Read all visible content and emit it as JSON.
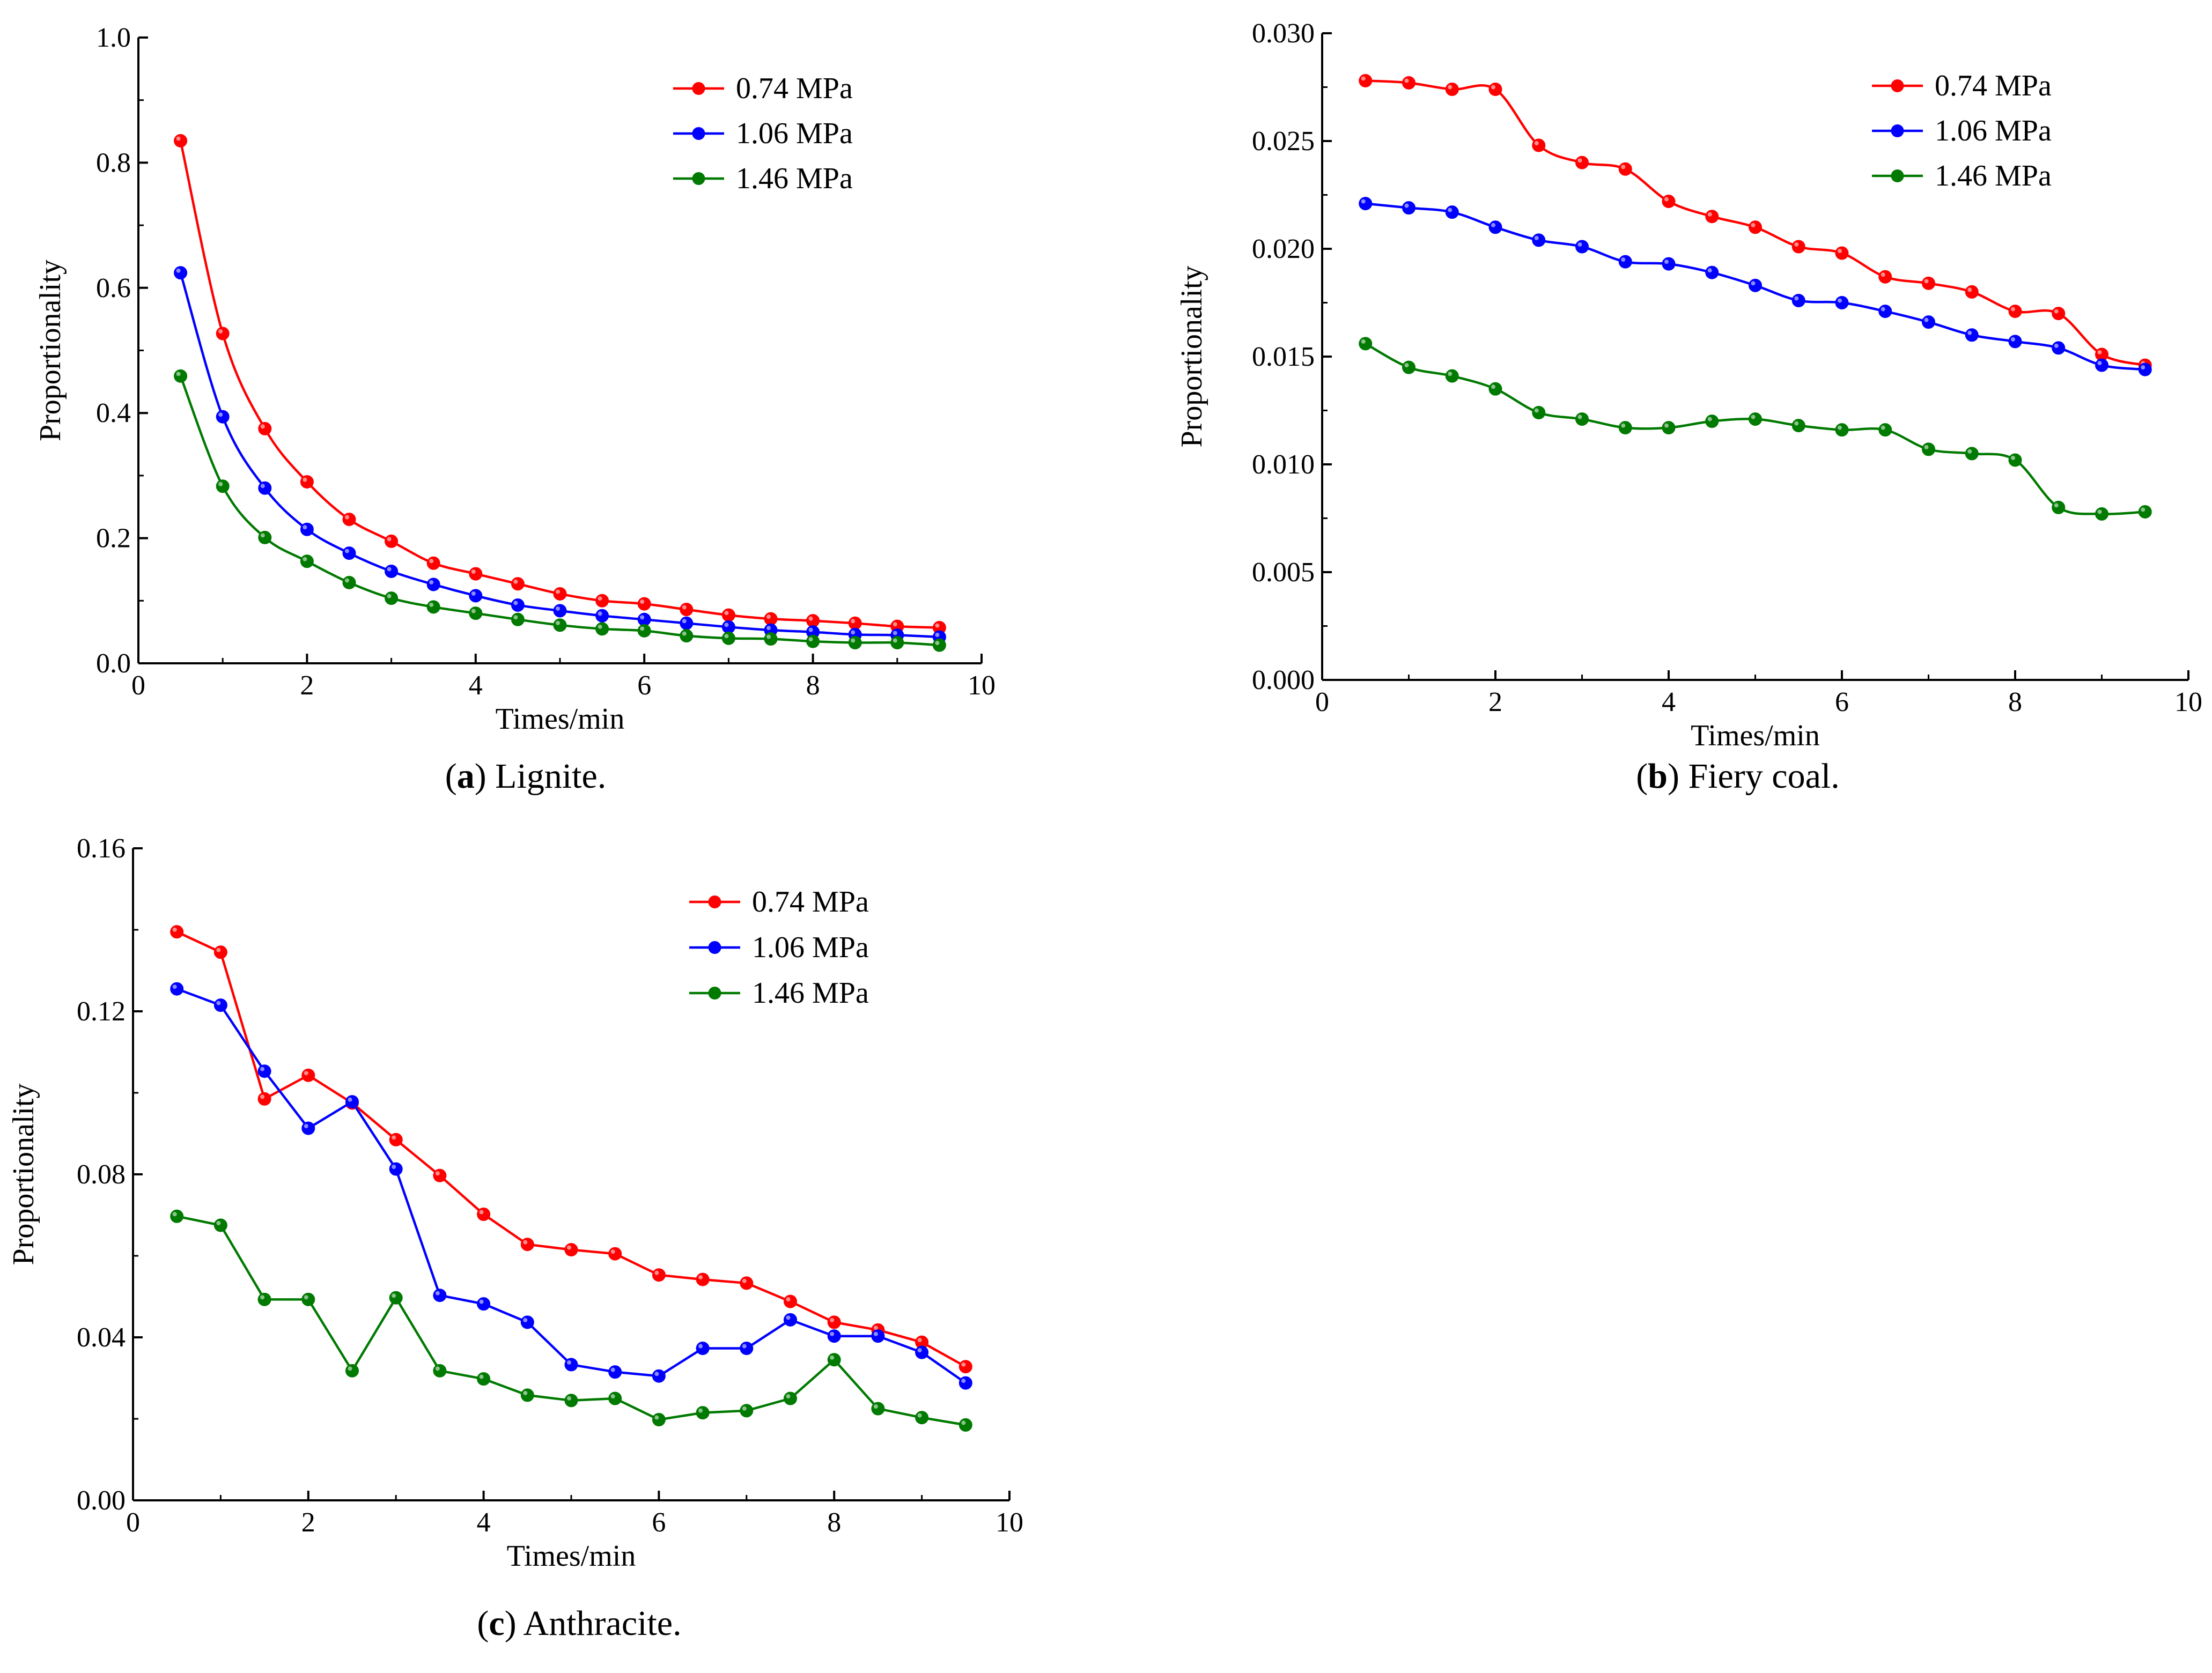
{
  "colors": {
    "red": "#ff0000",
    "blue": "#0000ff",
    "green": "#007a00"
  },
  "panels": [
    {
      "id": "a",
      "caption_label": "a",
      "caption_text": ") Lignite.",
      "caption_open": "(",
      "chart_data": {
        "type": "line",
        "title": "",
        "xlabel": "Times/min",
        "ylabel": "Proportionality",
        "xlim": [
          0,
          10
        ],
        "ylim": [
          0,
          1.0
        ],
        "xticks": [
          0,
          2,
          4,
          6,
          8,
          10
        ],
        "xtick_labels": [
          "0",
          "2",
          "4",
          "6",
          "8",
          "10"
        ],
        "yticks": [
          0,
          0.2,
          0.4,
          0.6,
          0.8,
          1.0
        ],
        "ytick_labels": [
          "0.0",
          "0.2",
          "0.4",
          "0.6",
          "0.8",
          "1.0"
        ],
        "legend_position": "top-right",
        "smooth": true,
        "x": [
          0.5,
          1.0,
          1.5,
          2.0,
          2.5,
          3.0,
          3.5,
          4.0,
          4.5,
          5.0,
          5.5,
          6.0,
          6.5,
          7.0,
          7.5,
          8.0,
          8.5,
          9.0,
          9.5
        ],
        "series": [
          {
            "name": "0.74 MPa",
            "color": "#ff0000",
            "values": [
              0.835,
              0.527,
              0.375,
              0.29,
              0.23,
              0.195,
              0.16,
              0.143,
              0.127,
              0.111,
              0.1,
              0.095,
              0.086,
              0.077,
              0.071,
              0.068,
              0.064,
              0.059,
              0.057
            ]
          },
          {
            "name": "1.06 MPa",
            "color": "#0000ff",
            "values": [
              0.624,
              0.394,
              0.28,
              0.214,
              0.176,
              0.147,
              0.126,
              0.108,
              0.093,
              0.084,
              0.076,
              0.07,
              0.064,
              0.058,
              0.053,
              0.05,
              0.046,
              0.045,
              0.042
            ]
          },
          {
            "name": "1.46 MPa",
            "color": "#007a00",
            "values": [
              0.459,
              0.283,
              0.201,
              0.163,
              0.129,
              0.104,
              0.09,
              0.08,
              0.07,
              0.061,
              0.055,
              0.052,
              0.044,
              0.04,
              0.039,
              0.035,
              0.033,
              0.033,
              0.029
            ]
          }
        ]
      }
    },
    {
      "id": "b",
      "caption_label": "b",
      "caption_text": ") Fiery coal.",
      "caption_open": "(",
      "chart_data": {
        "type": "line",
        "title": "",
        "xlabel": "Times/min",
        "ylabel": "Proportionality",
        "xlim": [
          0,
          10
        ],
        "ylim": [
          0,
          0.03
        ],
        "xticks": [
          0,
          2,
          4,
          6,
          8,
          10
        ],
        "xtick_labels": [
          "0",
          "2",
          "4",
          "6",
          "8",
          "10"
        ],
        "yticks": [
          0,
          0.005,
          0.01,
          0.015,
          0.02,
          0.025,
          0.03
        ],
        "ytick_labels": [
          "0.000",
          "0.005",
          "0.010",
          "0.015",
          "0.020",
          "0.025",
          "0.030"
        ],
        "legend_position": "top-right",
        "smooth": true,
        "x": [
          0.5,
          1.0,
          1.5,
          2.0,
          2.5,
          3.0,
          3.5,
          4.0,
          4.5,
          5.0,
          5.5,
          6.0,
          6.5,
          7.0,
          7.5,
          8.0,
          8.5,
          9.0,
          9.5
        ],
        "series": [
          {
            "name": "0.74 MPa",
            "color": "#ff0000",
            "values": [
              0.0278,
              0.0277,
              0.0274,
              0.0274,
              0.0248,
              0.024,
              0.0237,
              0.0222,
              0.0215,
              0.021,
              0.0201,
              0.0198,
              0.0187,
              0.0184,
              0.018,
              0.0171,
              0.017,
              0.0151,
              0.0146
            ]
          },
          {
            "name": "1.06 MPa",
            "color": "#0000ff",
            "values": [
              0.0221,
              0.0219,
              0.0217,
              0.021,
              0.0204,
              0.0201,
              0.0194,
              0.0193,
              0.0189,
              0.0183,
              0.0176,
              0.0175,
              0.0171,
              0.0166,
              0.016,
              0.0157,
              0.0154,
              0.0146,
              0.0144
            ]
          },
          {
            "name": "1.46 MPa",
            "color": "#007a00",
            "values": [
              0.0156,
              0.0145,
              0.0141,
              0.0135,
              0.0124,
              0.0121,
              0.0117,
              0.0117,
              0.012,
              0.0121,
              0.0118,
              0.0116,
              0.0116,
              0.0107,
              0.0105,
              0.0102,
              0.008,
              0.0077,
              0.0078
            ]
          }
        ]
      }
    },
    {
      "id": "c",
      "caption_label": "c",
      "caption_text": ") Anthracite.",
      "caption_open": "(",
      "chart_data": {
        "type": "line",
        "title": "",
        "xlabel": "Times/min",
        "ylabel": "Proportionality",
        "xlim": [
          0,
          10
        ],
        "ylim": [
          0,
          0.16
        ],
        "xticks": [
          0,
          2,
          4,
          6,
          8,
          10
        ],
        "xtick_labels": [
          "0",
          "2",
          "4",
          "6",
          "8",
          "10"
        ],
        "yticks": [
          0,
          0.04,
          0.08,
          0.12,
          0.16
        ],
        "ytick_labels": [
          "0.00",
          "0.04",
          "0.08",
          "0.12",
          "0.16"
        ],
        "legend_position": "top-right",
        "smooth": false,
        "x": [
          0.5,
          1.0,
          1.5,
          2.0,
          2.5,
          3.0,
          3.5,
          4.0,
          4.5,
          5.0,
          5.5,
          6.0,
          6.5,
          7.0,
          7.5,
          8.0,
          8.5,
          9.0,
          9.5
        ],
        "series": [
          {
            "name": "0.74 MPa",
            "color": "#ff0000",
            "values": [
              0.1395,
              0.1345,
              0.0985,
              0.1043,
              0.0975,
              0.0885,
              0.0797,
              0.0702,
              0.0628,
              0.0615,
              0.0605,
              0.0553,
              0.0542,
              0.0533,
              0.0488,
              0.0437,
              0.0418,
              0.0388,
              0.0328
            ]
          },
          {
            "name": "1.06 MPa",
            "color": "#0000ff",
            "values": [
              0.1255,
              0.1215,
              0.1053,
              0.0913,
              0.0978,
              0.0813,
              0.0503,
              0.0482,
              0.0437,
              0.0333,
              0.0315,
              0.0305,
              0.0373,
              0.0373,
              0.0443,
              0.0403,
              0.0403,
              0.0363,
              0.0288
            ]
          },
          {
            "name": "1.46 MPa",
            "color": "#007a00",
            "values": [
              0.0697,
              0.0675,
              0.0493,
              0.0493,
              0.0318,
              0.0497,
              0.0318,
              0.0298,
              0.0258,
              0.0245,
              0.025,
              0.0198,
              0.0215,
              0.022,
              0.025,
              0.0345,
              0.0225,
              0.0203,
              0.0185
            ]
          }
        ]
      }
    }
  ]
}
